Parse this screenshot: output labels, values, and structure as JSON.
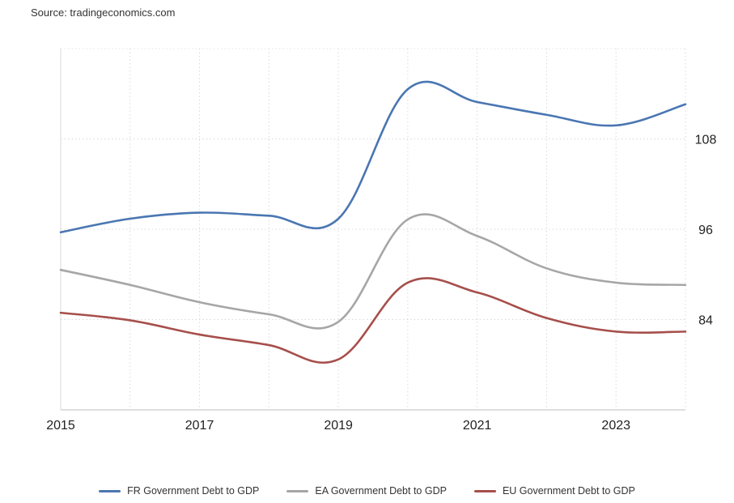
{
  "source": "Source: tradingeconomics.com",
  "chart_data": {
    "type": "line",
    "title": "",
    "xlabel": "",
    "ylabel": "",
    "x": [
      2015,
      2016,
      2017,
      2018,
      2019,
      2020,
      2021,
      2022,
      2023,
      2024
    ],
    "xlim": [
      2015,
      2024
    ],
    "ylim": [
      72,
      120
    ],
    "x_ticks": [
      "2015",
      "2017",
      "2019",
      "2021",
      "2023"
    ],
    "x_tick_values": [
      2015,
      2017,
      2019,
      2021,
      2023
    ],
    "y_ticks": [
      "84",
      "96",
      "108"
    ],
    "y_tick_values": [
      84,
      96,
      108
    ],
    "grid": true,
    "legend_position": "bottom",
    "series": [
      {
        "name": "FR Government Debt to GDP",
        "color": "#4a76b2",
        "values": [
          95.6,
          97.4,
          98.2,
          97.8,
          97.4,
          114.6,
          112.9,
          111.2,
          109.8,
          112.6
        ]
      },
      {
        "name": "EA Government Debt to GDP",
        "color": "#a6a6a6",
        "values": [
          90.6,
          88.6,
          86.3,
          84.7,
          83.7,
          97.3,
          95.1,
          90.8,
          88.9,
          88.6
        ]
      },
      {
        "name": "EU Government Debt to GDP",
        "color": "#a64f4b",
        "values": [
          84.9,
          83.9,
          82.0,
          80.6,
          78.7,
          88.9,
          87.6,
          84.2,
          82.4,
          82.4
        ]
      }
    ]
  }
}
